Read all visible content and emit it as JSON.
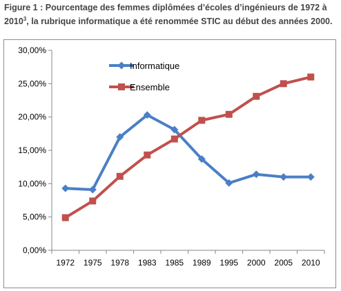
{
  "caption": {
    "prefix": "Figure 1 : Pourcentage des femmes diplômées d’écoles d’ingénieurs de 1972 à 2010",
    "footnote_ref": "3",
    "suffix": ", la rubrique informatique a été renommée STIC au début des années 2000."
  },
  "chart_data": {
    "type": "line",
    "categories": [
      "1972",
      "1975",
      "1978",
      "1983",
      "1985",
      "1989",
      "1995",
      "2000",
      "2005",
      "2010"
    ],
    "series": [
      {
        "name": "Informatique",
        "color": "#4a7fc6",
        "marker": "diamond",
        "values": [
          9.3,
          9.1,
          17.0,
          20.3,
          18.1,
          13.7,
          10.1,
          11.4,
          11.0,
          11.0
        ]
      },
      {
        "name": "Ensemble",
        "color": "#c0504d",
        "marker": "square",
        "values": [
          4.9,
          7.4,
          11.1,
          14.3,
          16.7,
          19.5,
          20.4,
          23.1,
          25.0,
          26.0
        ]
      }
    ],
    "y_ticks": [
      "0,00%",
      "5,00%",
      "10,00%",
      "15,00%",
      "20,00%",
      "25,00%",
      "30,00%"
    ],
    "ylim": [
      0,
      30
    ],
    "grid": false,
    "legend_position": "top-left inside plot"
  }
}
